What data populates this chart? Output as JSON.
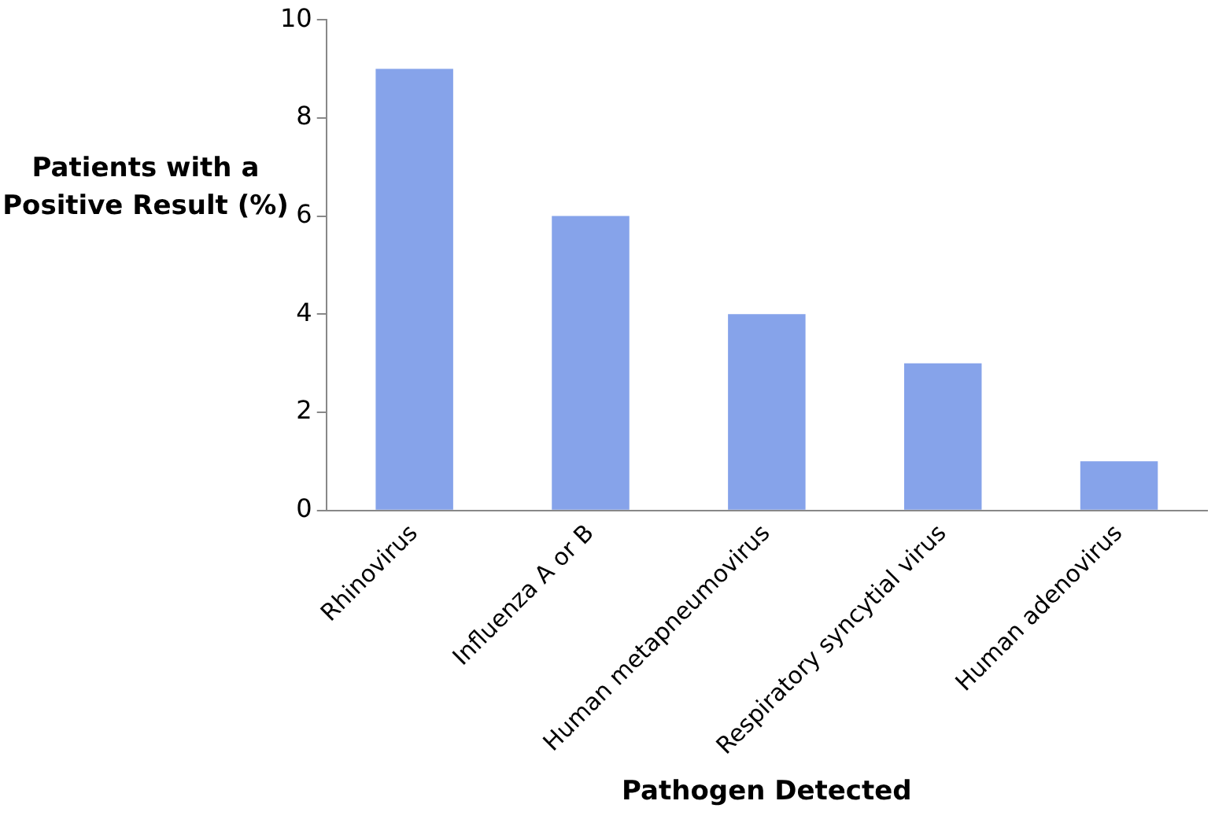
{
  "chart_data": {
    "type": "bar",
    "xlabel": "Pathogen Detected",
    "ylabel": "Patients with a Positive Result (%)",
    "categories": [
      "Rhinovirus",
      "Influenza A or B",
      "Human metapneumovirus",
      "Respiratory syncytial virus",
      "Human adenovirus"
    ],
    "values": [
      9,
      6,
      4,
      3,
      1
    ],
    "color": "#86a3ea",
    "ylim": [
      0,
      10
    ],
    "yticks": [
      0,
      2,
      4,
      6,
      8,
      10
    ],
    "grid": false,
    "legend": false
  }
}
